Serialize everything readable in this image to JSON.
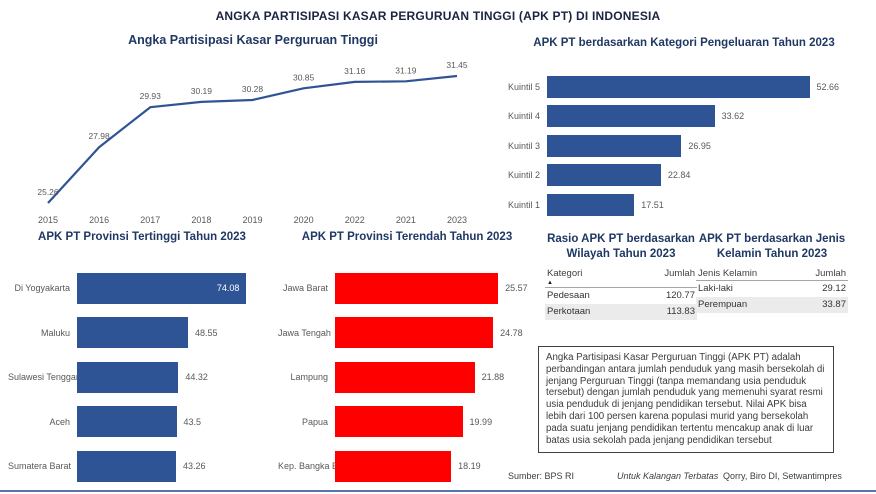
{
  "page": {
    "title": "ANGKA PARTISIPASI KASAR PERGURUAN TINGGI (APK PT) DI INDONESIA"
  },
  "colors": {
    "accent_blue": "#2F5496",
    "accent_red": "#FF0000",
    "title_navy": "#1F3864",
    "label_gray": "#595959",
    "row_stripe": "#EBEBEB"
  },
  "chart_data": [
    {
      "id": "apk_trend",
      "type": "line",
      "title": "Angka Partisipasi Kasar Perguruan Tinggi",
      "x": [
        "2015",
        "2016",
        "2017",
        "2018",
        "2019",
        "2020",
        "2022",
        "2021",
        "2023"
      ],
      "values": [
        25.26,
        27.98,
        29.93,
        30.19,
        30.28,
        30.85,
        31.16,
        31.19,
        31.45
      ],
      "ylim": [
        25,
        32
      ],
      "grid": false,
      "legend": "none",
      "line_color": "#2F5496",
      "label_color": "#595959"
    },
    {
      "id": "apk_pengeluaran",
      "type": "bar",
      "orientation": "horizontal",
      "title": "APK PT berdasarkan Kategori Pengeluaran Tahun 2023",
      "categories": [
        "Kuintil 5",
        "Kuintil 4",
        "Kuintil 3",
        "Kuintil 2",
        "Kuintil 1"
      ],
      "values": [
        52.66,
        33.62,
        26.95,
        22.84,
        17.51
      ],
      "bar_color": "#2F5496",
      "xlim": [
        0,
        66
      ],
      "grid": false,
      "legend": "none"
    },
    {
      "id": "apk_tertinggi",
      "type": "bar",
      "orientation": "horizontal",
      "title": "APK PT Provinsi Tertinggi Tahun 2023",
      "categories": [
        "Di Yogyakarta",
        "Maluku",
        "Sulawesi Tenggara",
        "Aceh",
        "Sumatera Barat"
      ],
      "values": [
        74.08,
        48.55,
        44.32,
        43.5,
        43.26
      ],
      "bar_color": "#2F5496",
      "xlim": [
        0,
        87
      ],
      "value_label_inside": [
        true,
        false,
        false,
        false,
        false
      ],
      "grid": false,
      "legend": "none"
    },
    {
      "id": "apk_terendah",
      "type": "bar",
      "orientation": "horizontal",
      "title": "APK PT Provinsi Terendah Tahun 2023",
      "categories": [
        "Jawa Barat",
        "Jawa Tengah",
        "Lampung",
        "Papua",
        "Kep. Bangka Beli..."
      ],
      "values": [
        25.57,
        24.78,
        21.88,
        19.99,
        18.19
      ],
      "bar_color": "#FF0000",
      "xlim": [
        0,
        31.5
      ],
      "grid": false,
      "legend": "none"
    },
    {
      "id": "rasio_wilayah",
      "type": "table",
      "title": "Rasio APK PT berdasarkan Wilayah Tahun 2023",
      "columns": [
        "Kategori",
        "Jumlah"
      ],
      "rows": [
        [
          "Pedesaan",
          "120.77"
        ],
        [
          "Perkotaan",
          "113.83"
        ]
      ],
      "sorted_column": "Kategori",
      "sort_direction": "asc"
    },
    {
      "id": "jenis_kelamin",
      "type": "table",
      "title": "APK PT berdasarkan Jenis Kelamin Tahun 2023",
      "columns": [
        "Jenis Kelamin",
        "Jumlah"
      ],
      "rows": [
        [
          "Laki-laki",
          "29.12"
        ],
        [
          "Perempuan",
          "33.87"
        ]
      ]
    }
  ],
  "definition_box": {
    "text": "Angka Partisipasi Kasar Perguruan Tinggi (APK PT) adalah perbandingan antara jumlah penduduk yang masih bersekolah di jenjang Perguruan Tinggi (tanpa memandang usia penduduk tersebut) dengan jumlah penduduk yang memenuhi syarat resmi usia penduduk di jenjang pendidikan tersebut. Nilai APK bisa lebih dari 100 persen karena populasi murid yang bersekolah pada suatu jenjang pendidikan tertentu mencakup anak di luar batas usia sekolah pada jenjang pendidikan tersebut"
  },
  "footer": {
    "source": "Sumber: BPS RI",
    "classification": "Untuk Kalangan Terbatas",
    "credit": "Qorry, Biro DI, Setwantimpres"
  }
}
